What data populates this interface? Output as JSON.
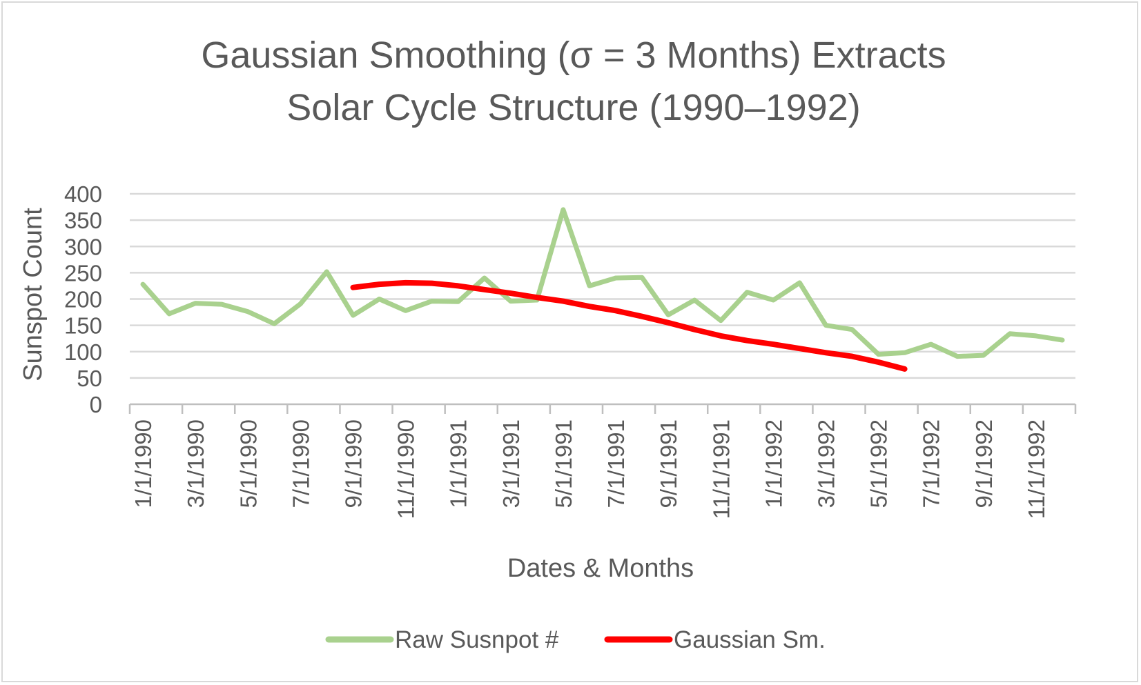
{
  "chart_data": {
    "type": "line",
    "title": [
      "Gaussian Smoothing (σ = 3 Months) Extracts",
      "Solar Cycle Structure (1990–1992)"
    ],
    "xlabel": "Dates & Months",
    "ylabel": "Sunspot Count",
    "ylim": [
      0,
      400
    ],
    "yticks": [
      0,
      50,
      100,
      150,
      200,
      250,
      300,
      350,
      400
    ],
    "grid": true,
    "legend_position": "bottom",
    "categories": [
      "1/1/1990",
      "2/1/1990",
      "3/1/1990",
      "4/1/1990",
      "5/1/1990",
      "6/1/1990",
      "7/1/1990",
      "8/1/1990",
      "9/1/1990",
      "10/1/1990",
      "11/1/1990",
      "12/1/1990",
      "1/1/1991",
      "2/1/1991",
      "3/1/1991",
      "4/1/1991",
      "5/1/1991",
      "6/1/1991",
      "7/1/1991",
      "8/1/1991",
      "9/1/1991",
      "10/1/1991",
      "11/1/1991",
      "12/1/1991",
      "1/1/1992",
      "2/1/1992",
      "3/1/1992",
      "4/1/1992",
      "5/1/1992",
      "6/1/1992",
      "7/1/1992",
      "8/1/1992",
      "9/1/1992",
      "10/1/1992",
      "11/1/1992",
      "12/1/1992"
    ],
    "xtick_labels": [
      "1/1/1990",
      "3/1/1990",
      "5/1/1990",
      "7/1/1990",
      "9/1/1990",
      "11/1/1990",
      "1/1/1991",
      "3/1/1991",
      "5/1/1991",
      "7/1/1991",
      "9/1/1991",
      "11/1/1991",
      "1/1/1992",
      "3/1/1992",
      "5/1/1992",
      "7/1/1992",
      "9/1/1992",
      "11/1/1992"
    ],
    "series": [
      {
        "name": "Raw Susnpot #",
        "color": "#a9d18e",
        "values": [
          228,
          172,
          192,
          190,
          176,
          153,
          191,
          252,
          169,
          200,
          178,
          196,
          195,
          240,
          196,
          198,
          370,
          225,
          240,
          241,
          170,
          198,
          159,
          213,
          198,
          231,
          150,
          142,
          95,
          98,
          114,
          91,
          93,
          134,
          130,
          122
        ]
      },
      {
        "name": "Gaussian Sm.",
        "color": "#ff0000",
        "values": [
          null,
          null,
          null,
          null,
          null,
          null,
          null,
          null,
          222,
          228,
          231,
          230,
          225,
          218,
          211,
          203,
          196,
          186,
          178,
          167,
          155,
          142,
          130,
          121,
          114,
          106,
          98,
          91,
          80,
          67,
          null,
          null,
          null,
          null,
          null,
          null
        ]
      }
    ]
  }
}
